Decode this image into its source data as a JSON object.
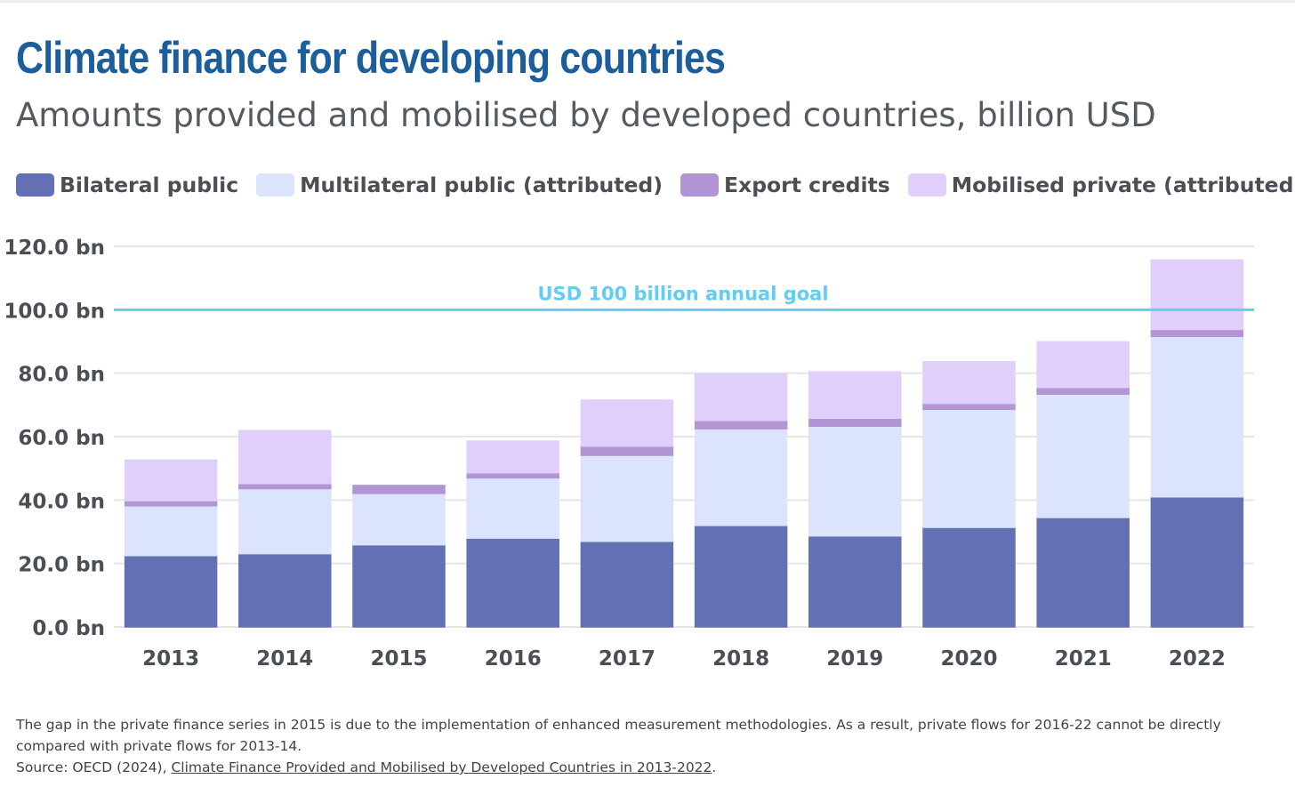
{
  "title": "Climate finance for developing countries",
  "subtitle": "Amounts provided and mobilised by developed countries, billion USD",
  "legend": [
    {
      "label": "Bilateral public",
      "color": "#6470b4"
    },
    {
      "label": "Multilateral public (attributed)",
      "color": "#dce4fd"
    },
    {
      "label": "Export credits",
      "color": "#b394d4"
    },
    {
      "label": "Mobilised private (attributed)",
      "color": "#e1cffb"
    }
  ],
  "chart_data": {
    "type": "bar",
    "stacked": true,
    "categories": [
      "2013",
      "2014",
      "2015",
      "2016",
      "2017",
      "2018",
      "2019",
      "2020",
      "2021",
      "2022"
    ],
    "series": [
      {
        "name": "Bilateral public",
        "color": "#6470b4",
        "values": [
          22.5,
          23.1,
          25.9,
          28.0,
          27.0,
          32.0,
          28.7,
          31.4,
          34.5,
          41.0
        ]
      },
      {
        "name": "Multilateral public (attributed)",
        "color": "#dce4fd",
        "values": [
          15.7,
          20.5,
          16.2,
          19.0,
          27.1,
          30.5,
          34.6,
          37.2,
          38.9,
          50.6
        ]
      },
      {
        "name": "Export credits",
        "color": "#b394d4",
        "values": [
          1.6,
          1.6,
          2.5,
          1.6,
          2.9,
          2.6,
          2.5,
          1.9,
          2.1,
          2.2
        ]
      },
      {
        "name": "Mobilised private (attributed)",
        "color": "#e1cffb",
        "values": [
          12.8,
          16.7,
          null,
          10.0,
          14.5,
          14.7,
          14.6,
          13.1,
          14.4,
          21.9
        ]
      }
    ],
    "y_ticks": [
      0,
      20,
      40,
      60,
      80,
      100,
      120
    ],
    "y_tick_labels": [
      "0.0 bn",
      "20.0 bn",
      "40.0 bn",
      "60.0 bn",
      "80.0 bn",
      "100.0 bn",
      "120.0 bn"
    ],
    "ylim": [
      0,
      120
    ],
    "grid": true,
    "reference_line": {
      "value": 100,
      "label": "USD 100 billion annual goal",
      "color": "#62cdf4"
    },
    "xlabel": "",
    "ylabel": ""
  },
  "footnote": {
    "note": "The gap in the private finance series in 2015 is due to the implementation of enhanced measurement methodologies. As a result, private flows for 2016-22 cannot be directly compared with private flows for 2013-14.",
    "source_prefix": "Source: OECD (2024), ",
    "source_link": "Climate Finance Provided and Mobilised by Developed Countries in 2013-2022",
    "source_suffix": "."
  }
}
